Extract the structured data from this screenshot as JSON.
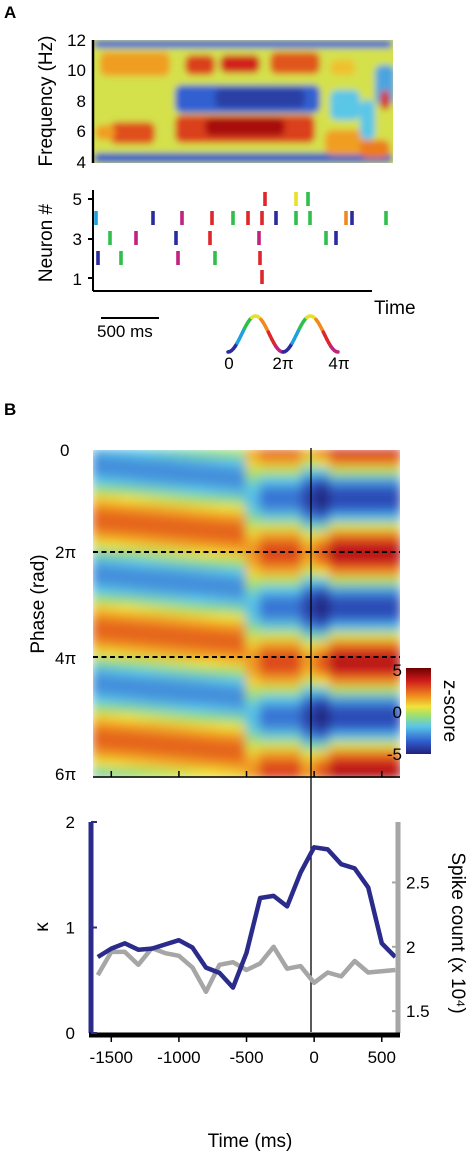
{
  "panel_a": {
    "label": "A",
    "spectrogram": {
      "ylabel": "Frequency (Hz)",
      "yticks": [
        "4",
        "6",
        "8",
        "10",
        "12"
      ]
    },
    "raster": {
      "ylabel": "Neuron #",
      "yticks": [
        "1",
        "3",
        "5"
      ],
      "xlabel": "Time",
      "scalebar_label": "500 ms"
    },
    "phase_legend": {
      "tick_labels": [
        "0",
        "2π",
        "4π"
      ],
      "colors": [
        "#2b2b9f",
        "#1fa0e0",
        "#2fbf4a",
        "#e8e02a",
        "#f08a1e",
        "#e0262a",
        "#c2227f"
      ]
    }
  },
  "panel_b": {
    "label": "B",
    "heatmap": {
      "ylabel": "Phase (rad)",
      "yticks": [
        "0",
        "2π",
        "4π",
        "6π"
      ],
      "dashed_lines_at": [
        "2π",
        "4π"
      ],
      "colorbar": {
        "label": "z-score",
        "ticks": [
          "5",
          "0",
          "-5"
        ]
      }
    },
    "chart_data": {
      "type": "line",
      "xlabel": "Time  (ms)",
      "ylabel_left": "κ",
      "ylabel_right": "Spike count  (x 10⁴)",
      "xlim": [
        -1650,
        620
      ],
      "ylim_left": [
        0,
        2
      ],
      "ylim_right": [
        1.33,
        2.97
      ],
      "xticks": [
        -1500,
        -1000,
        -500,
        0,
        500
      ],
      "xtick_labels": [
        "-1500",
        "-1000",
        "-500",
        "0",
        "500"
      ],
      "yticks_left": [
        0,
        1,
        2
      ],
      "yticks_right": [
        1.5,
        2,
        2.5
      ],
      "ytick_labels_right": [
        "1.5",
        "2",
        "2.5"
      ],
      "x": [
        -1600,
        -1500,
        -1400,
        -1300,
        -1200,
        -1100,
        -1000,
        -900,
        -800,
        -700,
        -600,
        -500,
        -400,
        -300,
        -200,
        -100,
        0,
        100,
        200,
        300,
        400,
        500,
        600
      ],
      "series": [
        {
          "axis": "left",
          "color": "#2b2b8c",
          "values": [
            0.72,
            0.8,
            0.85,
            0.79,
            0.8,
            0.84,
            0.88,
            0.81,
            0.62,
            0.57,
            0.43,
            0.76,
            1.28,
            1.3,
            1.2,
            1.52,
            1.76,
            1.74,
            1.6,
            1.56,
            1.38,
            0.85,
            0.72
          ]
        },
        {
          "axis": "right",
          "color": "#a6a6a6",
          "values": [
            1.78,
            1.96,
            1.96,
            1.86,
            1.99,
            1.95,
            1.93,
            1.84,
            1.65,
            1.86,
            1.88,
            1.82,
            1.87,
            2.0,
            1.83,
            1.85,
            1.72,
            1.8,
            1.77,
            1.89,
            1.8,
            1.81,
            1.82
          ]
        }
      ]
    }
  }
}
